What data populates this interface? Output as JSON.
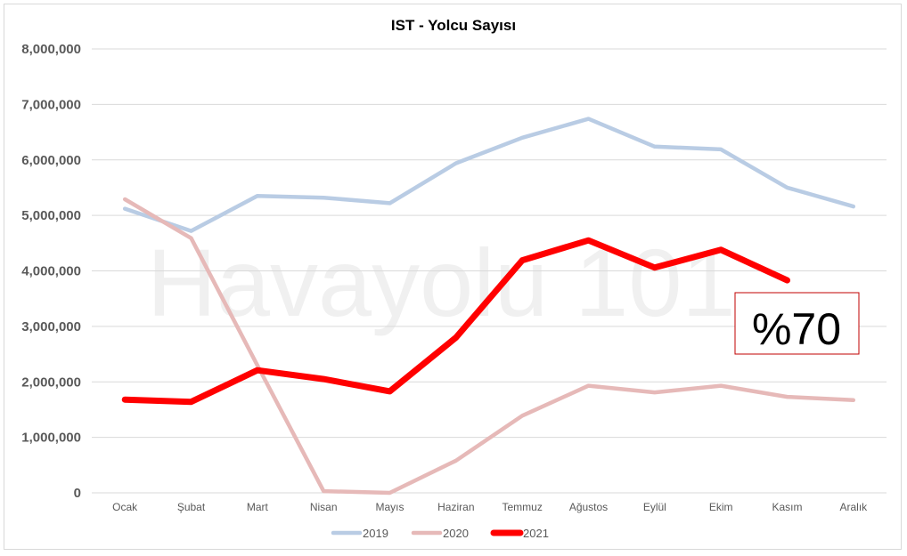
{
  "chart_data": {
    "type": "line",
    "title": "IST - Yolcu Sayısı",
    "watermark": "Havayolu 101",
    "categories": [
      "Ocak",
      "Şubat",
      "Mart",
      "Nisan",
      "Mayıs",
      "Haziran",
      "Temmuz",
      "Ağustos",
      "Eylül",
      "Ekim",
      "Kasım",
      "Aralık"
    ],
    "ylim": [
      0,
      8000000
    ],
    "yticks": [
      0,
      1000000,
      2000000,
      3000000,
      4000000,
      5000000,
      6000000,
      7000000,
      8000000
    ],
    "ytick_labels": [
      "0",
      "1,000,000",
      "2,000,000",
      "3,000,000",
      "4,000,000",
      "5,000,000",
      "6,000,000",
      "7,000,000",
      "8,000,000"
    ],
    "grid": true,
    "legend_position": "bottom",
    "series": [
      {
        "name": "2019",
        "color": "#b9cce4",
        "values": [
          5120000,
          4720000,
          5350000,
          5320000,
          5220000,
          5940000,
          6400000,
          6740000,
          6240000,
          6190000,
          5500000,
          5160000
        ]
      },
      {
        "name": "2020",
        "color": "#e6b9b8",
        "values": [
          5290000,
          4590000,
          2300000,
          30000,
          0,
          580000,
          1390000,
          1930000,
          1810000,
          1930000,
          1730000,
          1670000
        ]
      },
      {
        "name": "2021",
        "color": "#ff0000",
        "values": [
          1680000,
          1640000,
          2210000,
          2050000,
          1830000,
          2800000,
          4190000,
          4550000,
          4060000,
          4380000,
          3830000,
          null
        ]
      }
    ],
    "annotation": {
      "text": "%70",
      "border_color": "#c00000"
    }
  }
}
